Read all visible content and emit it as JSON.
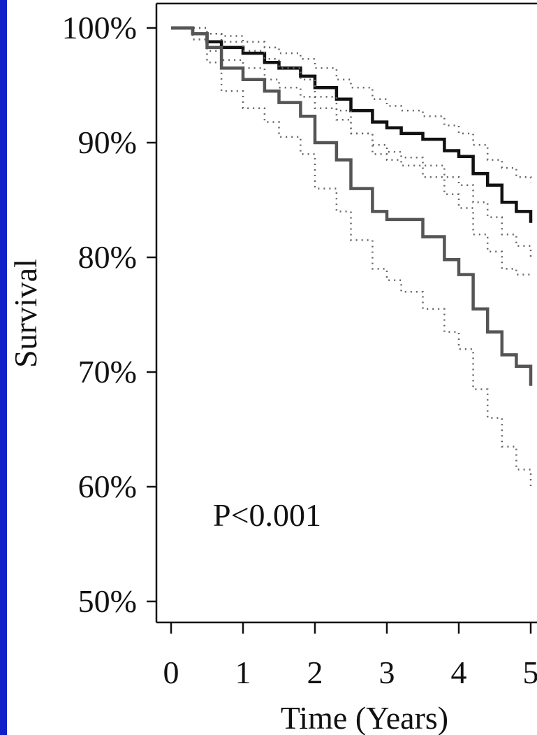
{
  "chart_data": {
    "type": "line",
    "chart_kind": "kaplan-meier survival curve with dotted confidence bands",
    "xlabel": "Time (Years)",
    "ylabel": "Survival",
    "xlim": [
      0,
      5
    ],
    "ylim": [
      50,
      100
    ],
    "x_ticks": [
      0,
      1,
      2,
      3,
      4,
      5
    ],
    "x_tick_labels": [
      "0",
      "1",
      "2",
      "3",
      "4",
      "5"
    ],
    "y_ticks": [
      50,
      60,
      70,
      80,
      90,
      100
    ],
    "y_tick_labels": [
      "50%",
      "60%",
      "70%",
      "80%",
      "90%",
      "100%"
    ],
    "grid": false,
    "annotation": "P<0.001",
    "colors": {
      "background": "#1020c8",
      "plot": "#ffffff",
      "upper_series": "#111111",
      "lower_series": "#555555",
      "band": "#666666"
    },
    "series": [
      {
        "style": "solid-black",
        "x": [
          0,
          0.3,
          0.5,
          0.7,
          1.0,
          1.3,
          1.5,
          1.8,
          2.0,
          2.3,
          2.5,
          2.8,
          3.0,
          3.2,
          3.5,
          3.8,
          4.0,
          4.2,
          4.4,
          4.6,
          4.8,
          5.0
        ],
        "y": [
          100,
          99.5,
          98.8,
          98.3,
          97.8,
          97.0,
          96.5,
          95.8,
          94.8,
          93.8,
          92.8,
          91.8,
          91.3,
          90.8,
          90.3,
          89.3,
          88.8,
          87.3,
          86.3,
          84.8,
          84.0,
          83.0
        ],
        "ci_upper": [
          100,
          100,
          99.5,
          99.3,
          98.8,
          98.3,
          97.8,
          97.3,
          96.5,
          95.5,
          94.8,
          93.8,
          93.2,
          92.8,
          92.3,
          91.5,
          90.8,
          89.8,
          88.5,
          87.8,
          87.0,
          86.5
        ],
        "ci_lower": [
          100,
          99.0,
          98.0,
          97.2,
          96.5,
          95.5,
          94.8,
          94.0,
          93.0,
          92.0,
          90.8,
          89.8,
          89.2,
          88.7,
          88.0,
          87.0,
          86.3,
          84.8,
          83.5,
          82.0,
          81.0,
          79.8
        ]
      },
      {
        "style": "solid-gray",
        "x": [
          0,
          0.3,
          0.5,
          0.7,
          1.0,
          1.3,
          1.5,
          1.8,
          2.0,
          2.3,
          2.5,
          2.8,
          3.0,
          3.2,
          3.5,
          3.8,
          4.0,
          4.2,
          4.4,
          4.6,
          4.8,
          5.0
        ],
        "y": [
          100,
          99.5,
          98.3,
          96.5,
          95.5,
          94.5,
          93.5,
          92.3,
          90.0,
          88.5,
          86.0,
          84.0,
          83.3,
          83.3,
          81.8,
          79.8,
          78.5,
          75.5,
          73.5,
          71.5,
          70.5,
          68.8
        ],
        "ci_upper": [
          100,
          100,
          99.5,
          98.8,
          98.0,
          97.3,
          96.5,
          95.5,
          94.0,
          92.8,
          90.8,
          89.0,
          88.5,
          88.0,
          87.0,
          85.5,
          84.3,
          82.0,
          80.5,
          79.0,
          78.5,
          78.5
        ],
        "ci_lower": [
          100,
          99.0,
          97.0,
          94.5,
          93.0,
          91.8,
          90.5,
          89.0,
          86.0,
          84.0,
          81.5,
          79.0,
          78.0,
          77.0,
          75.5,
          73.5,
          72.0,
          68.5,
          66.0,
          63.5,
          61.5,
          60.0
        ]
      }
    ]
  }
}
